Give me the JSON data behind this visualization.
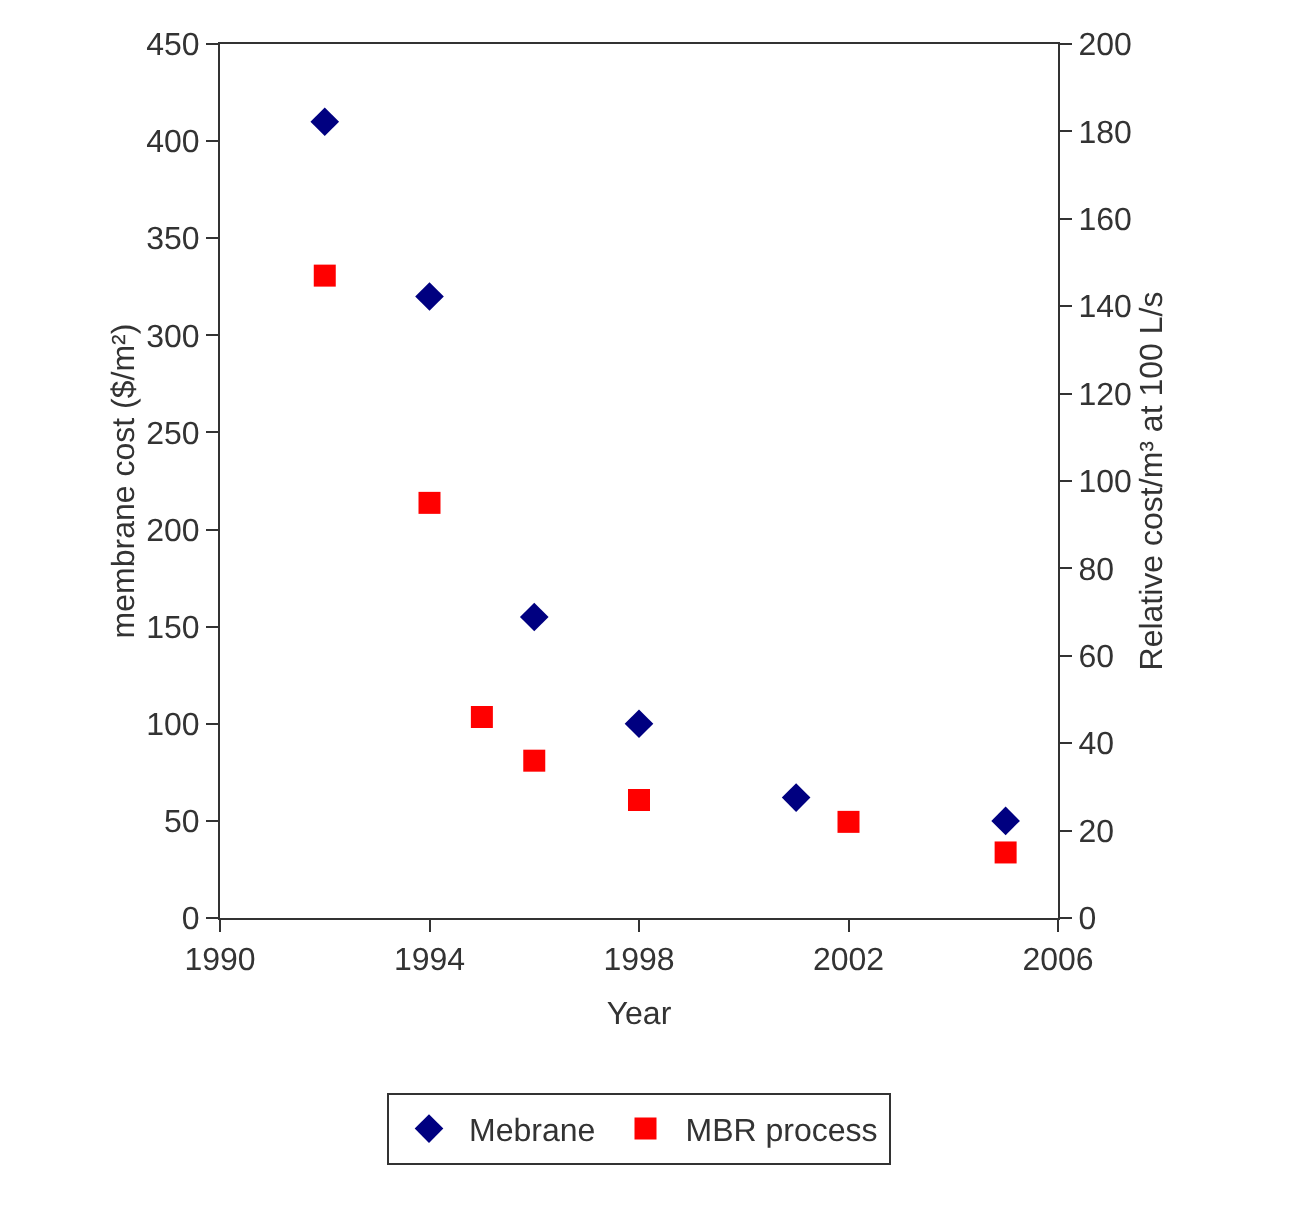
{
  "chart_data": {
    "type": "scatter",
    "xlabel": "Year",
    "ylabel": "membrane cost ($/m²)",
    "y2label": "Relative cost/m³ at 100 L/s",
    "xlim": [
      1990,
      2006
    ],
    "xticks": [
      1990,
      1994,
      1998,
      2002,
      2006
    ],
    "ylim": [
      0,
      450
    ],
    "yticks": [
      0,
      50,
      100,
      150,
      200,
      250,
      300,
      350,
      400,
      450
    ],
    "y2lim": [
      0,
      200
    ],
    "y2ticks": [
      0,
      20,
      40,
      60,
      80,
      100,
      120,
      140,
      160,
      180,
      200
    ],
    "grid": false,
    "legend": "bottom",
    "series": [
      {
        "name": "Mebrane",
        "color": "#000080",
        "marker": "diamond",
        "x": [
          1992,
          1994,
          1996,
          1998,
          2001,
          2005
        ],
        "values": [
          410,
          320,
          155,
          100,
          62,
          50
        ]
      },
      {
        "name": "MBR process",
        "color": "#ff0000",
        "marker": "square",
        "axis": "y2",
        "x": [
          1992,
          1994,
          1995,
          1996,
          1998,
          2002,
          2005
        ],
        "values": [
          147,
          95,
          46,
          36,
          27,
          22,
          15
        ]
      }
    ]
  }
}
